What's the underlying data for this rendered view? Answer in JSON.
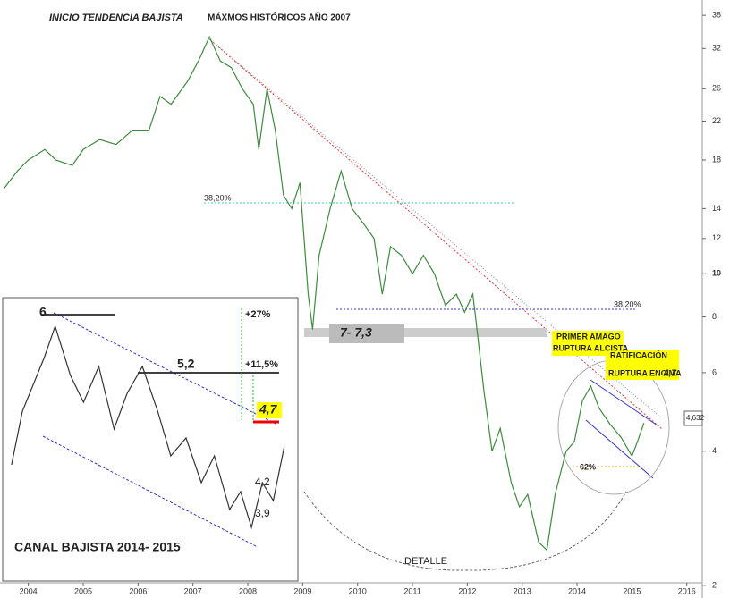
{
  "chart_data": [
    {
      "type": "line",
      "log_scale": true,
      "color": "#3d8b3d",
      "x": [
        2003.55,
        2003.8,
        2004.0,
        2004.3,
        2004.5,
        2004.8,
        2005.0,
        2005.3,
        2005.6,
        2005.9,
        2006.2,
        2006.4,
        2006.6,
        2006.9,
        2007.1,
        2007.3,
        2007.5,
        2007.7,
        2007.9,
        2008.1,
        2008.2,
        2008.35,
        2008.5,
        2008.65,
        2008.8,
        2008.95,
        2009.1,
        2009.18,
        2009.3,
        2009.5,
        2009.7,
        2009.9,
        2010.1,
        2010.3,
        2010.45,
        2010.6,
        2010.8,
        2011.0,
        2011.2,
        2011.4,
        2011.6,
        2011.8,
        2011.95,
        2012.1,
        2012.15,
        2012.3,
        2012.45,
        2012.6,
        2012.8,
        2012.95,
        2013.1,
        2013.3,
        2013.45,
        2013.6,
        2013.8,
        2013.95,
        2014.1,
        2014.25,
        2014.4,
        2014.6,
        2014.8,
        2015.0,
        2015.1,
        2015.22
      ],
      "values": [
        15.5,
        17,
        18,
        19,
        18,
        17.5,
        19,
        20,
        19.5,
        21,
        21,
        25,
        24,
        27,
        30,
        34,
        30,
        29,
        26,
        24,
        19,
        26,
        21,
        15,
        14,
        16,
        9,
        7.5,
        11,
        14,
        17,
        14,
        13,
        12,
        9,
        11.5,
        11,
        10,
        11,
        10,
        8.5,
        9,
        8.2,
        9,
        8,
        5.5,
        4,
        4.5,
        3.4,
        3,
        3.2,
        2.5,
        2.4,
        3.2,
        4,
        4.2,
        5.2,
        5.6,
        5,
        4.6,
        4.3,
        3.9,
        4.2,
        4.63
      ],
      "xlim": [
        2003.5,
        2016.2
      ],
      "xticks": [
        2004,
        2005,
        2006,
        2007,
        2008,
        2009,
        2010,
        2011,
        2012,
        2013,
        2014,
        2015,
        2016
      ],
      "ylim": [
        1.9,
        40
      ],
      "yticks": [
        2,
        4,
        6,
        8,
        10,
        12,
        14,
        18,
        22,
        26,
        32,
        38
      ],
      "annotations": [
        "INICIO TENDENCIA BAJISTA",
        "MÁXMOS HISTÓRICOS AÑO 2007",
        "38,20%",
        "38,20%",
        "7- 7,3",
        "PRIMER AMAGO",
        "RUPTURA ALCISTA",
        "RATIFICACIÓN",
        "RUPTURA ENCIMA",
        "4,7",
        "62%",
        "DETALLE",
        "4,632"
      ]
    },
    {
      "type": "line",
      "color": "#333333",
      "x": [
        2014.0,
        2014.05,
        2014.1,
        2014.15,
        2014.2,
        2014.27,
        2014.33,
        2014.4,
        2014.47,
        2014.53,
        2014.6,
        2014.67,
        2014.73,
        2014.8,
        2014.87,
        2014.93,
        2015.0,
        2015.05,
        2015.1,
        2015.15,
        2015.2,
        2015.25
      ],
      "values": [
        4.4,
        5.0,
        5.3,
        5.6,
        5.95,
        5.4,
        5.1,
        5.5,
        4.8,
        5.2,
        5.5,
        5.0,
        4.5,
        4.7,
        4.2,
        4.5,
        3.9,
        4.1,
        3.7,
        4.2,
        4.0,
        4.6
      ],
      "xlim": [
        2013.98,
        2015.28
      ],
      "ylim": [
        3.2,
        6.2
      ],
      "annotations": [
        "6",
        "5,2",
        "+27%",
        "+11,5%",
        "4,7",
        "4,2",
        "3,9",
        "CANAL BAJISTA 2014- 2015"
      ]
    }
  ]
}
